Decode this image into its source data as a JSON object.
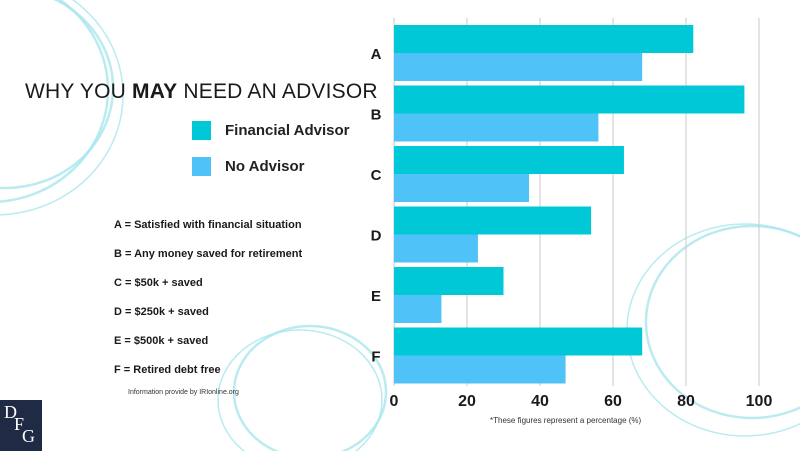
{
  "title": {
    "pre": "WHY YOU ",
    "bold": "MAY",
    "post": " NEED AN ADVISOR"
  },
  "legend": [
    {
      "label": "Financial Advisor",
      "color": "#00c8d7"
    },
    {
      "label": "No Advisor",
      "color": "#4fc3f7"
    }
  ],
  "key": [
    "A = Satisfied with financial situation",
    "B = Any money saved for retirement",
    "C = $50k + saved",
    "D = $250k + saved",
    "E = $500k + saved",
    "F = Retired debt free"
  ],
  "source": "Information provide by IRIonline.org",
  "footnote": "*These figures represent a percentage (%)",
  "logo": {
    "letters": [
      "D",
      "F",
      "G"
    ]
  },
  "colors": {
    "gridline": "#c8c8c8",
    "swirl": "#a8e6ee",
    "logo_bg": "#1f2a44"
  },
  "chart_data": {
    "type": "bar",
    "orientation": "horizontal",
    "categories": [
      "A",
      "B",
      "C",
      "D",
      "E",
      "F"
    ],
    "series": [
      {
        "name": "Financial Advisor",
        "values": [
          82,
          96,
          63,
          54,
          30,
          68
        ]
      },
      {
        "name": "No Advisor",
        "values": [
          68,
          56,
          37,
          23,
          13,
          47
        ]
      }
    ],
    "xlim": [
      0,
      100
    ],
    "xticks": [
      0,
      20,
      40,
      60,
      80,
      100
    ],
    "grid": true,
    "legend": "left"
  }
}
